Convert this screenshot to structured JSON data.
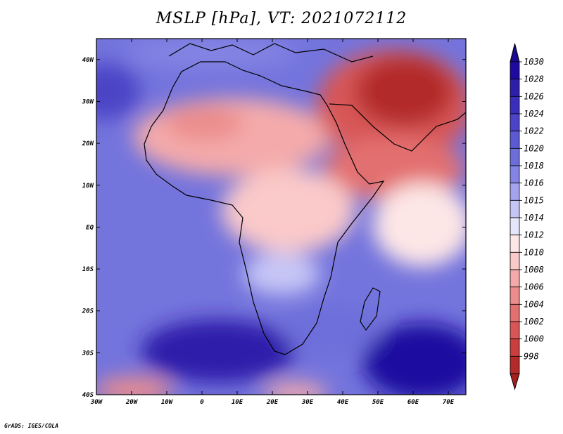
{
  "title": "MSLP [hPa], VT: 2021072112",
  "credit": "GrADS: IGES/COLA",
  "map": {
    "lon_range": [
      -30,
      75
    ],
    "lat_range": [
      -40,
      45
    ],
    "lon_ticks": [
      {
        "value": -30,
        "label": "30W"
      },
      {
        "value": -20,
        "label": "20W"
      },
      {
        "value": -10,
        "label": "10W"
      },
      {
        "value": 0,
        "label": "0"
      },
      {
        "value": 10,
        "label": "10E"
      },
      {
        "value": 20,
        "label": "20E"
      },
      {
        "value": 30,
        "label": "30E"
      },
      {
        "value": 40,
        "label": "40E"
      },
      {
        "value": 50,
        "label": "50E"
      },
      {
        "value": 60,
        "label": "60E"
      },
      {
        "value": 70,
        "label": "70E"
      }
    ],
    "lat_ticks": [
      {
        "value": 40,
        "label": "40N"
      },
      {
        "value": 30,
        "label": "30N"
      },
      {
        "value": 20,
        "label": "20N"
      },
      {
        "value": 10,
        "label": "10N"
      },
      {
        "value": 0,
        "label": "EQ"
      },
      {
        "value": -10,
        "label": "10S"
      },
      {
        "value": -20,
        "label": "20S"
      },
      {
        "value": -30,
        "label": "30S"
      },
      {
        "value": -40,
        "label": "40S"
      }
    ]
  },
  "legend": {
    "levels": [
      {
        "label": "1030",
        "color": "#1e0aa0"
      },
      {
        "label": "1028",
        "color": "#2e1faa"
      },
      {
        "label": "1026",
        "color": "#3a2fbb"
      },
      {
        "label": "1024",
        "color": "#4b44c6"
      },
      {
        "label": "1022",
        "color": "#5c5ad2"
      },
      {
        "label": "1020",
        "color": "#6e6edb"
      },
      {
        "label": "1018",
        "color": "#8484e4"
      },
      {
        "label": "1016",
        "color": "#a3a3ee"
      },
      {
        "label": "1015",
        "color": "#c6c6f6"
      },
      {
        "label": "1014",
        "color": "#e6e6fb"
      },
      {
        "label": "1012",
        "color": "#fde6e6"
      },
      {
        "label": "1010",
        "color": "#fac9c9"
      },
      {
        "label": "1008",
        "color": "#f4aaaa"
      },
      {
        "label": "1006",
        "color": "#ec8c8c"
      },
      {
        "label": "1004",
        "color": "#e37070"
      },
      {
        "label": "1002",
        "color": "#d85656"
      },
      {
        "label": "1000",
        "color": "#ca3e3e"
      },
      {
        "label": "998",
        "color": "#b32a2a"
      }
    ],
    "cap_top_color": "#1a0a90",
    "cap_bottom_color": "#a61f1f"
  }
}
